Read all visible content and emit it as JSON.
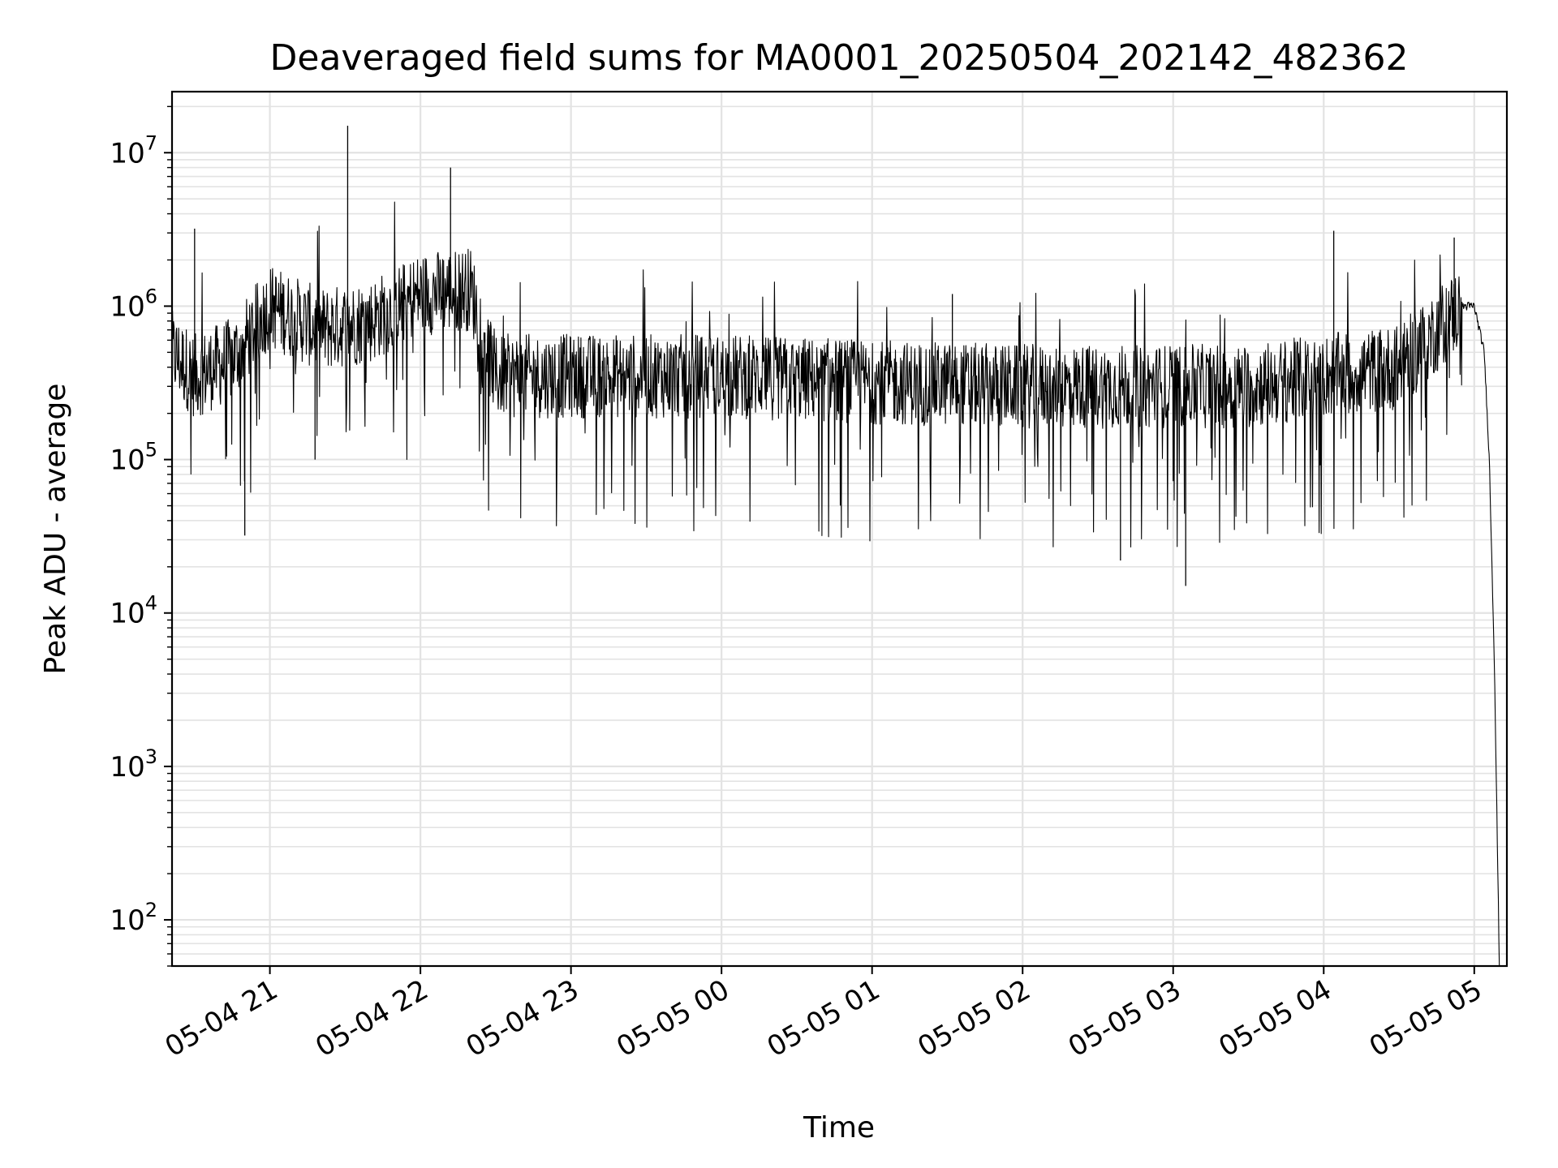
{
  "chart_data": {
    "type": "line",
    "title": "Deaveraged field sums for MA0001_20250504_202142_482362",
    "xlabel": "Time",
    "ylabel": "Peak ADU - average",
    "yscale": "log",
    "xlim": [
      "2025-05-04 20:21",
      "2025-05-05 05:13"
    ],
    "ylim": [
      50,
      25000000
    ],
    "grid": true,
    "line_color": "#000000",
    "grid_color": "#e3e3e3",
    "x_tick_labels": [
      "05-04 21",
      "05-04 22",
      "05-04 23",
      "05-05 00",
      "05-05 01",
      "05-05 02",
      "05-05 03",
      "05-05 04",
      "05-05 05"
    ],
    "y_tick_labels": [
      {
        "base": "10",
        "exp": "2"
      },
      {
        "base": "10",
        "exp": "3"
      },
      {
        "base": "10",
        "exp": "4"
      },
      {
        "base": "10",
        "exp": "5"
      },
      {
        "base": "10",
        "exp": "6"
      },
      {
        "base": "10",
        "exp": "7"
      }
    ],
    "series": [
      {
        "x": [
          "2025-05-04 20:21",
          "2025-05-04 20:30",
          "2025-05-04 20:45",
          "2025-05-04 21:00",
          "2025-05-04 21:20",
          "2025-05-04 21:40",
          "2025-05-04 22:00",
          "2025-05-04 22:20",
          "2025-05-04 22:30",
          "2025-05-04 23:00",
          "2025-05-05 00:00",
          "2025-05-05 01:00",
          "2025-05-05 02:00",
          "2025-05-05 03:00",
          "2025-05-05 03:30",
          "2025-05-05 04:00",
          "2025-05-05 04:30",
          "2025-05-05 04:55",
          "2025-05-05 05:00",
          "2025-05-05 05:04",
          "2025-05-05 05:06",
          "2025-05-05 05:08",
          "2025-05-05 05:10"
        ],
        "y": [
          500000,
          350000,
          450000,
          1000000,
          700000,
          800000,
          1200000,
          1300000,
          350000,
          350000,
          350000,
          320000,
          300000,
          300000,
          300000,
          350000,
          400000,
          1000000,
          1000000,
          500000,
          100000,
          5000,
          50
        ]
      }
    ],
    "notable_points": [
      {
        "x": "2025-05-04 20:30",
        "y": 3200000
      },
      {
        "x": "2025-05-04 20:50",
        "y": 32000
      },
      {
        "x": "2025-05-04 21:18",
        "y": 100000
      },
      {
        "x": "2025-05-04 21:31",
        "y": 15000000
      },
      {
        "x": "2025-05-04 22:12",
        "y": 8000000
      },
      {
        "x": "2025-05-05 01:32",
        "y": 1200000
      },
      {
        "x": "2025-05-05 02:39",
        "y": 22000
      },
      {
        "x": "2025-05-05 03:05",
        "y": 15000
      },
      {
        "x": "2025-05-05 04:04",
        "y": 3100000
      },
      {
        "x": "2025-05-05 04:52",
        "y": 2800000
      }
    ]
  }
}
